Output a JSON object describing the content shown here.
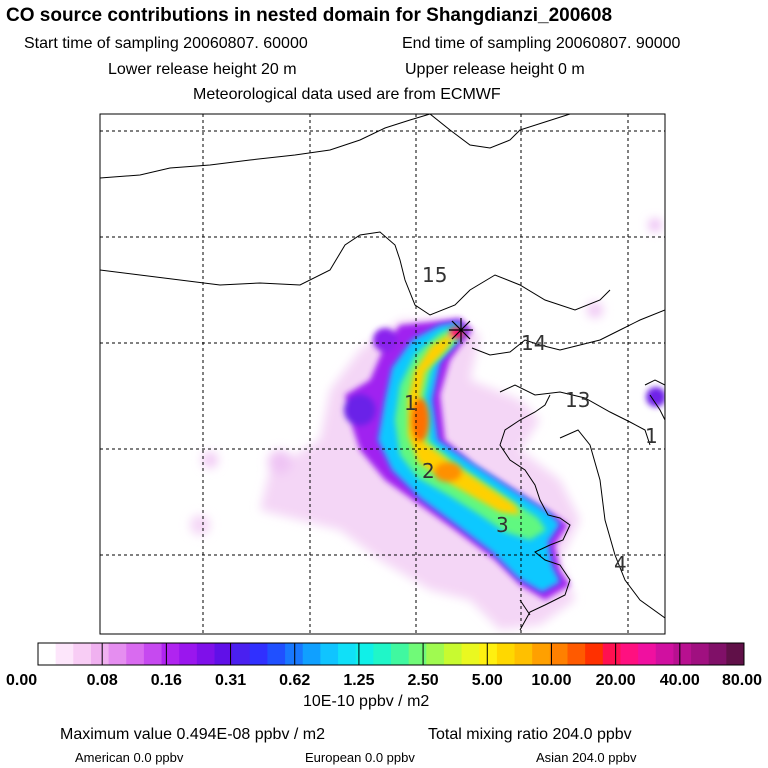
{
  "header": {
    "title": "CO  source contributions in nested domain for Shangdianzi_200608",
    "start_time": "Start time of sampling 20060807. 60000",
    "end_time": "End time of sampling 20060807. 90000",
    "lower_height": "Lower release height   20 m",
    "upper_height": "Upper release height    0 m",
    "met_data": "Meteorological data used are from ECMWF"
  },
  "map": {
    "time_labels": [
      "15",
      "14",
      "13",
      "1",
      "1",
      "2",
      "3",
      "4"
    ],
    "station_marker": "cross"
  },
  "colorbar": {
    "labels": [
      "0.00",
      "0.08",
      "0.16",
      "0.31",
      "0.62",
      "1.25",
      "2.50",
      "5.00",
      "10.00",
      "20.00",
      "40.00",
      "80.00"
    ],
    "colors": [
      "#ffffff",
      "#fde6fb",
      "#f8cdf5",
      "#f0b1f0",
      "#e58ef0",
      "#d96bf0",
      "#c649f0",
      "#b024f0",
      "#9a16ee",
      "#7f10ea",
      "#6010e8",
      "#4a20f0",
      "#3030ff",
      "#2050ff",
      "#1878ff",
      "#10a0ff",
      "#10c4ff",
      "#10e0f8",
      "#10f0e8",
      "#20f6c8",
      "#40f8a0",
      "#70fa78",
      "#a0fa50",
      "#c8fa30",
      "#eaf820",
      "#fff010",
      "#ffd800",
      "#ffc000",
      "#ffa000",
      "#ff8000",
      "#ff5a00",
      "#ff3000",
      "#ff1050",
      "#ff1080",
      "#f010a0",
      "#d010a0",
      "#b81090",
      "#a01080",
      "#801068",
      "#601048"
    ],
    "unit": "10E-10 ppbv / m2"
  },
  "footer": {
    "max_value": "Maximum value  0.494E-08 ppbv / m2",
    "total": "Total mixing ratio     204.0 ppbv",
    "american": "American        0.0 ppbv",
    "european": "European        0.0 ppbv",
    "asian": "Asian     204.0 ppbv"
  }
}
